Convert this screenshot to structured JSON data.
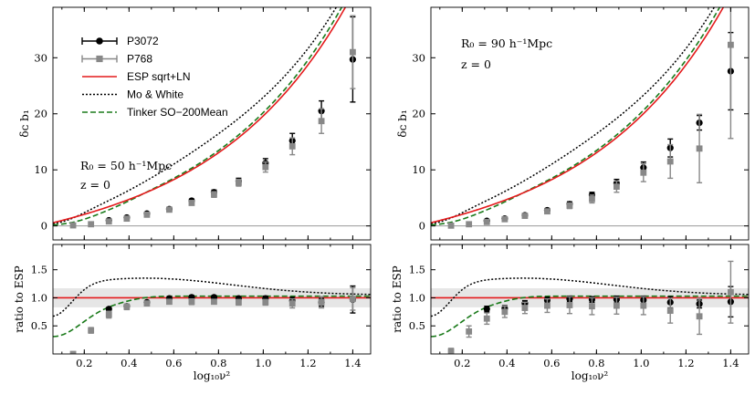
{
  "chart_data": [
    {
      "type": "scatter",
      "panel": "left-top",
      "title": "",
      "xlabel": "",
      "ylabel": "δ_c b_1",
      "xlim": [
        0.06,
        1.48
      ],
      "ylim": [
        -2.5,
        39
      ],
      "xticks": [
        0.2,
        0.4,
        0.6,
        0.8,
        1.0,
        1.2,
        1.4
      ],
      "yticks": [
        0,
        10,
        20,
        30
      ],
      "annotation": [
        "R_0 = 50 h^-1 Mpc",
        "z = 0"
      ],
      "legend_position": "top-left",
      "legend": [
        "P3072",
        "P768",
        "ESP sqrt+LN",
        "Mo & White",
        "Tinker SO−200Mean"
      ],
      "series": [
        {
          "name": "P3072",
          "color": "#000000",
          "marker": "circle",
          "x": [
            0.31,
            0.39,
            0.48,
            0.58,
            0.68,
            0.78,
            0.89,
            1.01,
            1.13,
            1.26,
            1.4
          ],
          "y": [
            1.0,
            1.5,
            2.2,
            3.0,
            4.5,
            6.0,
            8.0,
            11.2,
            15.2,
            20.5,
            29.7
          ],
          "err": [
            0.2,
            0.2,
            0.2,
            0.2,
            0.3,
            0.4,
            0.5,
            0.8,
            1.3,
            1.8,
            7.6
          ]
        },
        {
          "name": "P768",
          "color": "#888888",
          "marker": "square",
          "x": [
            0.15,
            0.23,
            0.31,
            0.39,
            0.48,
            0.58,
            0.68,
            0.78,
            0.89,
            1.01,
            1.13,
            1.26,
            1.4
          ],
          "y": [
            0.1,
            0.3,
            0.8,
            1.3,
            2.0,
            2.9,
            4.1,
            5.6,
            7.7,
            10.5,
            14.2,
            18.7,
            31.0
          ],
          "err": [
            0.1,
            0.1,
            0.2,
            0.2,
            0.2,
            0.3,
            0.4,
            0.5,
            0.6,
            0.9,
            1.5,
            2.2,
            6.5
          ]
        }
      ]
    },
    {
      "type": "scatter",
      "panel": "left-bottom",
      "xlabel": "log10 ν²",
      "ylabel": "ratio to ESP",
      "xlim": [
        0.06,
        1.48
      ],
      "ylim": [
        0.0,
        1.95
      ],
      "xticks": [
        0.2,
        0.4,
        0.6,
        0.8,
        1.0,
        1.2,
        1.4
      ],
      "yticks": [
        0.5,
        1.0,
        1.5
      ],
      "band": [
        0.83,
        1.17
      ],
      "series": [
        {
          "name": "P3072",
          "color": "#000000",
          "marker": "circle",
          "x": [
            0.31,
            0.39,
            0.48,
            0.58,
            0.68,
            0.78,
            0.89,
            1.01,
            1.13,
            1.26,
            1.4
          ],
          "y": [
            0.8,
            0.85,
            0.92,
            0.99,
            1.01,
            1.01,
            0.99,
            0.99,
            0.95,
            0.92,
            0.97
          ],
          "err": [
            0.03,
            0.03,
            0.03,
            0.03,
            0.03,
            0.03,
            0.03,
            0.04,
            0.06,
            0.07,
            0.24
          ]
        },
        {
          "name": "P768",
          "color": "#888888",
          "marker": "square",
          "x": [
            0.15,
            0.23,
            0.31,
            0.39,
            0.48,
            0.58,
            0.68,
            0.78,
            0.89,
            1.01,
            1.13,
            1.26,
            1.4
          ],
          "y": [
            0.0,
            0.42,
            0.7,
            0.84,
            0.9,
            0.93,
            0.93,
            0.93,
            0.92,
            0.92,
            0.9,
            0.92,
            0.98
          ],
          "err": [
            0.0,
            0.05,
            0.06,
            0.05,
            0.04,
            0.04,
            0.05,
            0.04,
            0.05,
            0.05,
            0.08,
            0.1,
            0.2
          ]
        }
      ]
    },
    {
      "type": "scatter",
      "panel": "right-top",
      "xlabel": "",
      "ylabel": "δ_c b_1",
      "xlim": [
        0.06,
        1.48
      ],
      "ylim": [
        -2.5,
        39
      ],
      "xticks": [
        0.2,
        0.4,
        0.6,
        0.8,
        1.0,
        1.2,
        1.4
      ],
      "yticks": [
        0,
        10,
        20,
        30
      ],
      "annotation": [
        "R_0 = 90 h^-1 Mpc",
        "z = 0"
      ],
      "series": [
        {
          "name": "P3072",
          "color": "#000000",
          "marker": "circle",
          "x": [
            0.31,
            0.39,
            0.48,
            0.58,
            0.68,
            0.78,
            0.89,
            1.01,
            1.13,
            1.26,
            1.4
          ],
          "y": [
            0.9,
            1.3,
            1.9,
            2.8,
            3.9,
            5.5,
            7.6,
            10.4,
            13.9,
            18.4,
            27.6
          ],
          "err": [
            0.2,
            0.2,
            0.3,
            0.3,
            0.4,
            0.5,
            0.7,
            1.0,
            1.6,
            1.3,
            6.9
          ]
        },
        {
          "name": "P768",
          "color": "#888888",
          "marker": "square",
          "x": [
            0.15,
            0.23,
            0.31,
            0.39,
            0.48,
            0.58,
            0.68,
            0.78,
            0.89,
            1.01,
            1.13,
            1.26,
            1.4
          ],
          "y": [
            0.05,
            0.3,
            0.7,
            1.2,
            1.8,
            2.6,
            3.6,
            4.8,
            7.0,
            9.5,
            11.5,
            13.8,
            32.3
          ],
          "err": [
            0.1,
            0.1,
            0.2,
            0.2,
            0.3,
            0.4,
            0.5,
            0.7,
            1.0,
            1.6,
            3.0,
            6.1,
            16.7
          ]
        }
      ]
    },
    {
      "type": "scatter",
      "panel": "right-bottom",
      "xlabel": "log10 ν²",
      "ylabel": "ratio to ESP",
      "xlim": [
        0.06,
        1.48
      ],
      "ylim": [
        0.0,
        1.95
      ],
      "xticks": [
        0.2,
        0.4,
        0.6,
        0.8,
        1.0,
        1.2,
        1.4
      ],
      "yticks": [
        0.5,
        1.0,
        1.5
      ],
      "band": [
        0.83,
        1.17
      ],
      "series": [
        {
          "name": "P3072",
          "color": "#000000",
          "marker": "circle",
          "x": [
            0.31,
            0.39,
            0.48,
            0.58,
            0.68,
            0.78,
            0.89,
            1.01,
            1.13,
            1.26,
            1.4
          ],
          "y": [
            0.8,
            0.81,
            0.9,
            0.96,
            0.98,
            0.97,
            0.97,
            0.96,
            0.92,
            0.89,
            0.93
          ],
          "err": [
            0.05,
            0.05,
            0.05,
            0.05,
            0.05,
            0.05,
            0.06,
            0.07,
            0.1,
            0.07,
            0.27
          ]
        },
        {
          "name": "P768",
          "color": "#888888",
          "marker": "square",
          "x": [
            0.15,
            0.23,
            0.31,
            0.39,
            0.48,
            0.58,
            0.68,
            0.78,
            0.89,
            1.01,
            1.13,
            1.26,
            1.4
          ],
          "y": [
            0.05,
            0.4,
            0.63,
            0.75,
            0.82,
            0.86,
            0.87,
            0.85,
            0.86,
            0.86,
            0.77,
            0.67,
            1.1
          ],
          "err": [
            0.05,
            0.1,
            0.1,
            0.1,
            0.1,
            0.12,
            0.15,
            0.15,
            0.15,
            0.16,
            0.22,
            0.32,
            0.55
          ]
        }
      ]
    }
  ],
  "curves": {
    "esp": {
      "name": "ESP sqrt+LN",
      "color": "#e41a1c"
    },
    "mw": {
      "name": "Mo & White",
      "color": "#000000"
    },
    "tinker": {
      "name": "Tinker SO−200Mean",
      "color": "#1a7a1a"
    }
  },
  "labels": {
    "xlabel": "log₁₀ν²",
    "ylabel_top": "δᴄ b₁",
    "ylabel_bottom": "ratio to ESP",
    "ann_left_r": "R₀ = 50 h⁻¹Mpc",
    "ann_left_z": "z = 0",
    "ann_right_r": "R₀ = 90 h⁻¹Mpc",
    "ann_right_z": "z = 0"
  },
  "legend": [
    {
      "label": "P3072",
      "style": "errbar-circle",
      "color": "#000000"
    },
    {
      "label": "P768",
      "style": "errbar-square",
      "color": "#888888"
    },
    {
      "label": "ESP sqrt+LN",
      "style": "solid",
      "color": "#e41a1c"
    },
    {
      "label": "Mo & White",
      "style": "dotted",
      "color": "#000000"
    },
    {
      "label": "Tinker SO−200Mean",
      "style": "dashed",
      "color": "#1a7a1a"
    }
  ]
}
